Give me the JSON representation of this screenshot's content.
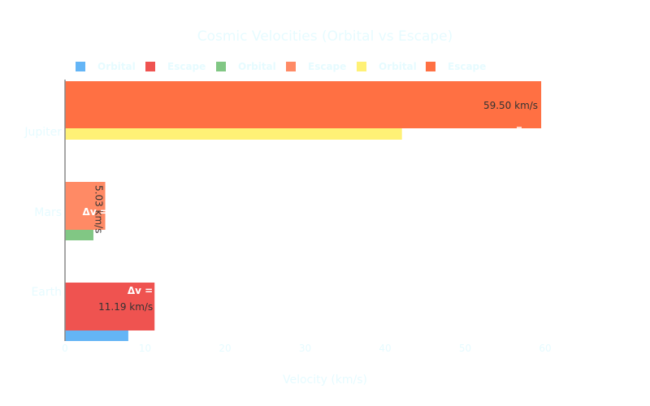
{
  "chart_data": {
    "type": "bar",
    "orientation": "horizontal",
    "title": "Cosmic Velocities (Orbital vs Escape)",
    "xlabel": "Velocity (km/s)",
    "ylabel": "",
    "xlim": [
      0,
      60
    ],
    "x_ticks": [
      "0",
      "10",
      "20",
      "30",
      "40",
      "50",
      "60"
    ],
    "categories": [
      "Earth",
      "Mars",
      "Jupiter"
    ],
    "legend_position": "top-left",
    "series": [
      {
        "name": "Orbital",
        "category": "Earth",
        "value": 7.91,
        "color": "#64b5f6"
      },
      {
        "name": "Escape",
        "category": "Earth",
        "value": 11.19,
        "color": "#ef5350",
        "label": "11.19 km/s",
        "annotation": "Δv ="
      },
      {
        "name": "Orbital",
        "category": "Mars",
        "value": 3.55,
        "color": "#81c784"
      },
      {
        "name": "Escape",
        "category": "Mars",
        "value": 5.03,
        "color": "#ff8a65",
        "label": "5.03 km/s",
        "annotation": "Δv ="
      },
      {
        "name": "Orbital",
        "category": "Jupiter",
        "value": 42.1,
        "color": "#fff176"
      },
      {
        "name": "Escape",
        "category": "Jupiter",
        "value": 59.5,
        "color": "#ff7043",
        "label": "59.50 km/s"
      }
    ]
  }
}
